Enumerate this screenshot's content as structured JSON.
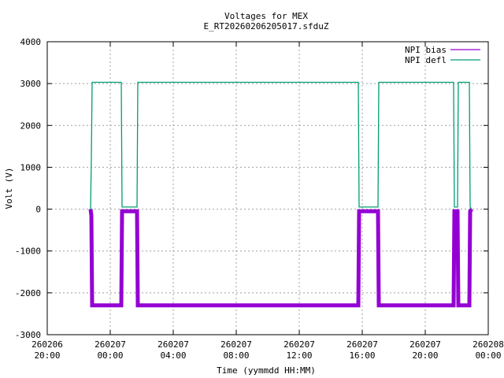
{
  "chart_data": {
    "type": "line",
    "title": "Voltages for MEX",
    "subtitle": "E_RT20260206205017.sfduZ",
    "xlabel": "Time (yymmdd HH:MM)",
    "ylabel": "Volt (V)",
    "xlim_hours": [
      0,
      28
    ],
    "ylim": [
      -3000,
      4000
    ],
    "yticks": [
      -3000,
      -2000,
      -1000,
      0,
      1000,
      2000,
      3000,
      4000
    ],
    "xticks": [
      {
        "h": 0,
        "date": "260206",
        "time": "20:00"
      },
      {
        "h": 4,
        "date": "260207",
        "time": "00:00"
      },
      {
        "h": 8,
        "date": "260207",
        "time": "04:00"
      },
      {
        "h": 12,
        "date": "260207",
        "time": "08:00"
      },
      {
        "h": 16,
        "date": "260207",
        "time": "12:00"
      },
      {
        "h": 20,
        "date": "260207",
        "time": "16:00"
      },
      {
        "h": 24,
        "date": "260207",
        "time": "20:00"
      },
      {
        "h": 28,
        "date": "260208",
        "time": "00:00"
      }
    ],
    "grid": true,
    "legend": "top-right",
    "series": [
      {
        "name": "NPI bias",
        "color": "#9400d3",
        "thick": true,
        "points": [
          [
            2.75,
            0
          ],
          [
            2.8,
            -150
          ],
          [
            2.85,
            -2300
          ],
          [
            4.7,
            -2300
          ],
          [
            4.75,
            -50
          ],
          [
            5.7,
            -50
          ],
          [
            5.75,
            -2300
          ],
          [
            19.75,
            -2300
          ],
          [
            19.8,
            -50
          ],
          [
            21.0,
            -50
          ],
          [
            21.05,
            -2300
          ],
          [
            25.8,
            -2300
          ],
          [
            25.85,
            -50
          ],
          [
            26.05,
            -50
          ],
          [
            26.1,
            -2300
          ],
          [
            26.8,
            -2300
          ],
          [
            26.85,
            -50
          ],
          [
            26.95,
            0
          ]
        ]
      },
      {
        "name": "NPI defl",
        "color": "#009e73",
        "thick": false,
        "points": [
          [
            2.75,
            0
          ],
          [
            2.8,
            1200
          ],
          [
            2.85,
            3030
          ],
          [
            4.7,
            3030
          ],
          [
            4.75,
            50
          ],
          [
            5.7,
            50
          ],
          [
            5.75,
            3030
          ],
          [
            19.75,
            3030
          ],
          [
            19.8,
            50
          ],
          [
            21.0,
            50
          ],
          [
            21.05,
            3030
          ],
          [
            25.8,
            3030
          ],
          [
            25.85,
            50
          ],
          [
            26.05,
            50
          ],
          [
            26.1,
            3030
          ],
          [
            26.8,
            3030
          ],
          [
            26.85,
            50
          ],
          [
            26.95,
            0
          ]
        ]
      }
    ]
  }
}
